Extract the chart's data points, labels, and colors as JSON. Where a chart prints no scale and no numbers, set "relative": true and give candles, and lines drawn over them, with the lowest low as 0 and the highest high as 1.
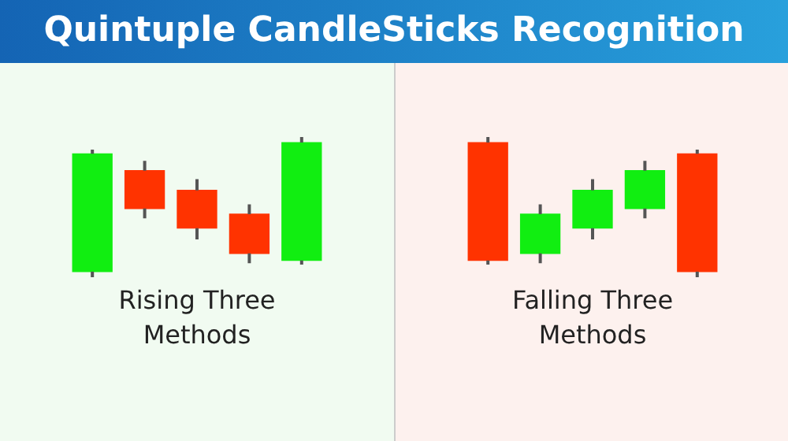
{
  "chart_data": [
    {
      "type": "candlestick",
      "title": "Quintuple CandleSticks Recognition",
      "xlabel": "Rising Three Methods",
      "relative": true,
      "categories": [
        null,
        null,
        null,
        null,
        null
      ],
      "ohlc": [
        [
          0.04,
          0.91,
          0,
          0.88
        ],
        [
          0.76,
          0.83,
          0.42,
          0.49
        ],
        [
          0.62,
          0.7,
          0.27,
          0.35
        ],
        [
          0.45,
          0.52,
          0.1,
          0.17
        ],
        [
          0.12,
          1,
          0.09,
          0.96
        ]
      ],
      "colors": [
        "#11ee11",
        "#ff3300",
        "#ff3300",
        "#ff3300",
        "#11ee11"
      ]
    },
    {
      "type": "candlestick",
      "xlabel": "Falling Three Methods",
      "relative": true,
      "categories": [
        null,
        null,
        null,
        null,
        null
      ],
      "ohlc": [
        [
          0.96,
          1,
          0.09,
          0.12
        ],
        [
          0.17,
          0.52,
          0.1,
          0.45
        ],
        [
          0.35,
          0.7,
          0.27,
          0.62
        ],
        [
          0.49,
          0.83,
          0.42,
          0.76
        ],
        [
          0.88,
          0.91,
          0,
          0.04
        ]
      ],
      "colors": [
        "#ff3300",
        "#11ee11",
        "#11ee11",
        "#11ee11",
        "#ff3300"
      ]
    }
  ]
}
